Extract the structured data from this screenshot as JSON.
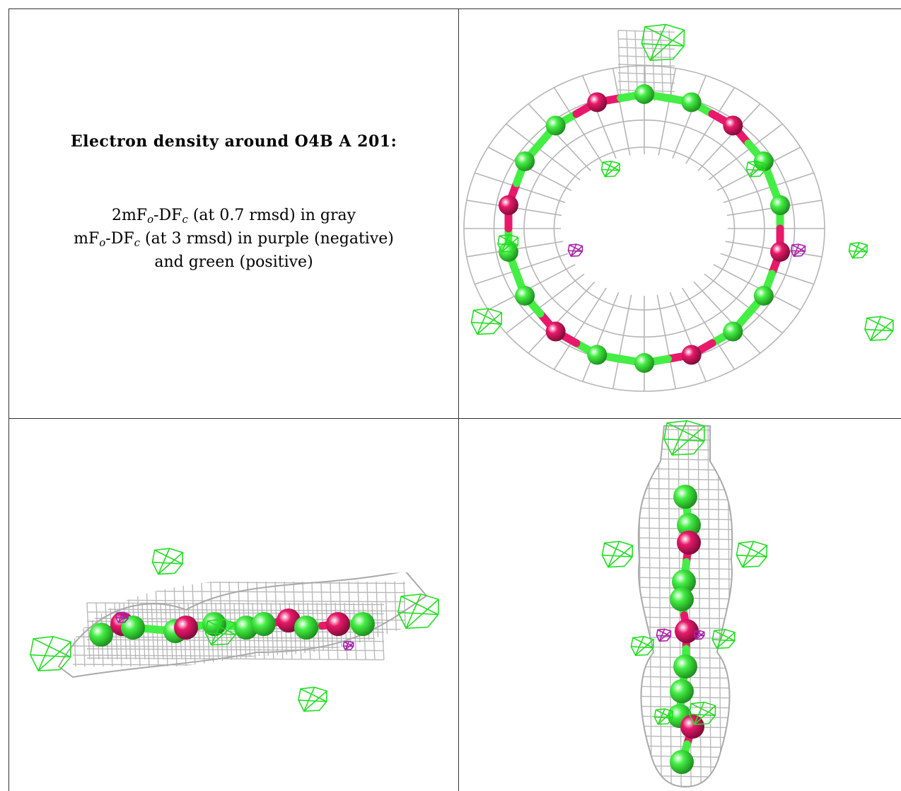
{
  "caption": {
    "title": "Electron density around O4B A 201:",
    "line1": {
      "prefix": "2mF",
      "sub_o": "o",
      "mid": "-DF",
      "sub_c": "c",
      "suffix": " (at 0.7 rmsd) in gray"
    },
    "line2": {
      "prefix": "mF",
      "sub_o": "o",
      "mid": "-DF",
      "sub_c": "c",
      "suffix": " (at 3 rmsd) in purple (negative)"
    },
    "line3": "and green (positive)"
  },
  "colors": {
    "mesh_2fofc": "#a9a9a9",
    "mesh_positive": "#22dd22",
    "mesh_negative": "#aa22aa",
    "carbon": "#44ee44",
    "oxygen": "#e8196a",
    "border": "#333333"
  },
  "panels": [
    {
      "id": "view-top-right",
      "orientation": "face-on ring"
    },
    {
      "id": "view-bottom-left",
      "orientation": "edge-on horizontal"
    },
    {
      "id": "view-bottom-right",
      "orientation": "edge-on vertical"
    }
  ]
}
